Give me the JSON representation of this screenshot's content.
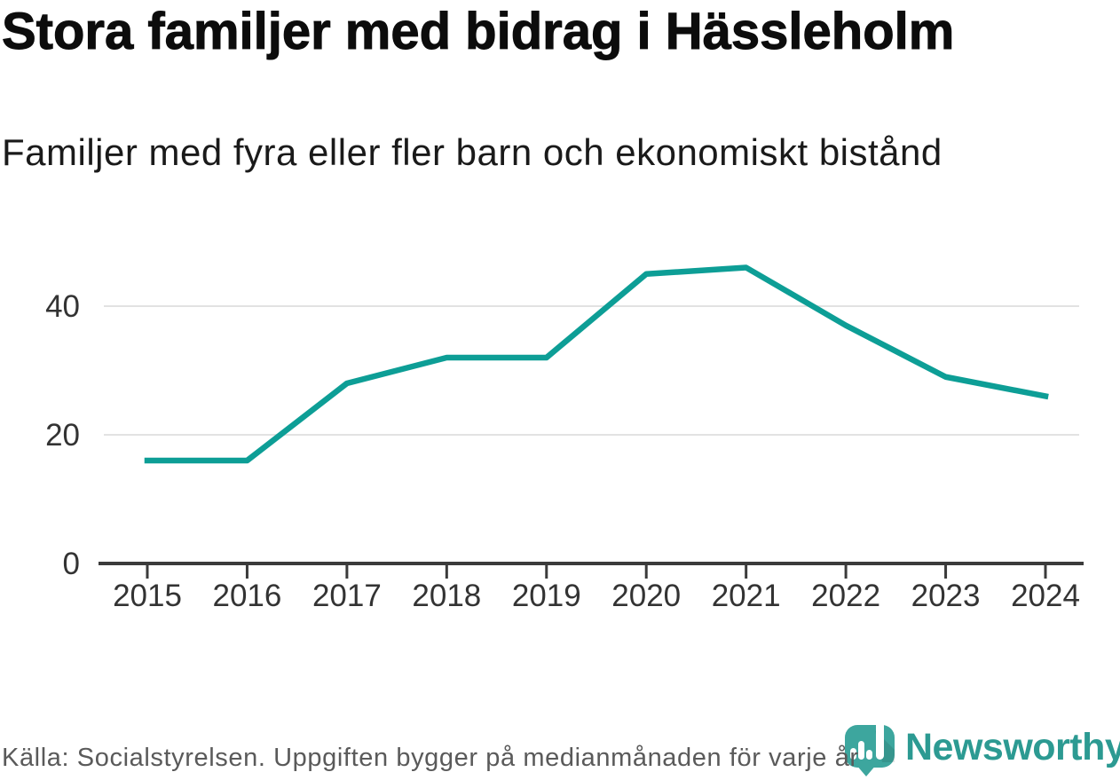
{
  "header": {
    "title": "Stora familjer med bidrag i Hässleholm",
    "subtitle": "Familjer med fyra eller fler barn och ekonomiskt bistånd"
  },
  "footer": {
    "source": "Källa: Socialstyrelsen. Uppgiften bygger på medianmånaden för varje år",
    "logo_text": "Newsworthy"
  },
  "colors": {
    "line": "#0d9e96",
    "gridline": "#e2e2e2",
    "axis": "#3b3b3b",
    "tick_label": "#333333",
    "title": "#0c0c0c",
    "subtitle": "#1a1a1a",
    "caption": "#5a5a5a",
    "logo_bubble": "#3da69e",
    "logo_text": "#2c9a92"
  },
  "chart_data": {
    "type": "line",
    "title": "Stora familjer med bidrag i Hässleholm",
    "subtitle": "Familjer med fyra eller fler barn och ekonomiskt bistånd",
    "x": [
      2015,
      2016,
      2017,
      2018,
      2019,
      2020,
      2021,
      2022,
      2023,
      2024
    ],
    "values": [
      16,
      16,
      28,
      32,
      32,
      45,
      46,
      37,
      29,
      26
    ],
    "series_name": "Familjer med fyra eller fler barn och ekonomiskt bistånd",
    "xlabel": "",
    "ylabel": "",
    "ylim": [
      0,
      48
    ],
    "yticks": [
      0,
      20,
      40
    ],
    "grid": "horizontal",
    "legend": "none",
    "line_color": "#0d9e96",
    "source": "Källa: Socialstyrelsen. Uppgiften bygger på medianmånaden för varje år"
  }
}
